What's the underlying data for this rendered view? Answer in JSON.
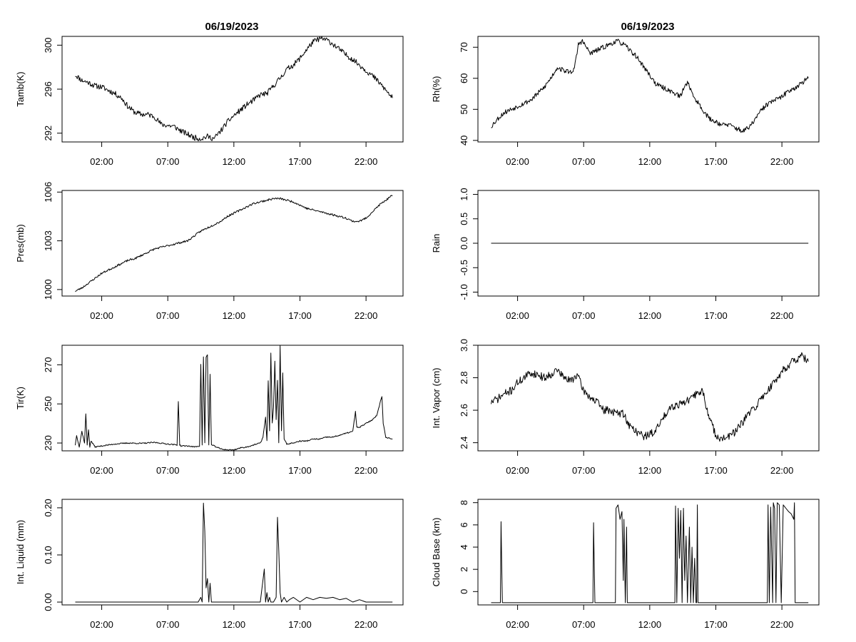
{
  "titles": {
    "left": "06/19/2023",
    "right": "06/19/2023"
  },
  "chart_data": [
    {
      "id": "tamb",
      "type": "line",
      "ylabel": "Tamb(K)",
      "ylim": [
        291.2,
        300.8
      ],
      "yticks": [
        292,
        296,
        300
      ],
      "ytick_labels": [
        "292",
        "296",
        "300"
      ],
      "xlim": [
        -1.0,
        24.8
      ],
      "xticks": [
        2,
        7,
        12,
        17,
        22
      ],
      "xtick_labels": [
        "02:00",
        "07:00",
        "12:00",
        "17:00",
        "22:00"
      ],
      "x": [
        0,
        0.5,
        1,
        1.5,
        2,
        2.5,
        3,
        3.5,
        4,
        4.5,
        5,
        5.5,
        6,
        6.5,
        7,
        7.5,
        8,
        8.5,
        9,
        9.5,
        10,
        10.5,
        11,
        11.5,
        12,
        12.5,
        13,
        13.5,
        14,
        14.5,
        15,
        15.5,
        16,
        16.5,
        17,
        17.5,
        18,
        18.5,
        19,
        19.5,
        20,
        20.5,
        21,
        21.5,
        22,
        22.5,
        23,
        23.5,
        24
      ],
      "values": [
        297.3,
        296.8,
        296.6,
        296.3,
        296.2,
        295.9,
        295.6,
        295.2,
        294.4,
        293.9,
        293.7,
        293.7,
        293.5,
        292.8,
        292.7,
        292.6,
        292.2,
        291.9,
        291.6,
        291.5,
        291.7,
        291.5,
        292.2,
        293.0,
        293.6,
        294.1,
        294.6,
        295.0,
        295.5,
        295.6,
        296.3,
        297.0,
        297.8,
        298.2,
        298.8,
        299.6,
        300.3,
        300.6,
        300.5,
        300.1,
        299.6,
        299.1,
        298.7,
        298.2,
        297.7,
        297.2,
        296.6,
        295.9,
        295.2
      ],
      "noise": 0.25,
      "seed": 11
    },
    {
      "id": "pres",
      "type": "line",
      "ylabel": "Pres(mb)",
      "ylim": [
        999.6,
        1006.1
      ],
      "yticks": [
        1000,
        1003,
        1006
      ],
      "ytick_labels": [
        "1000",
        "1003",
        "1006"
      ],
      "xlim": [
        -1.0,
        24.8
      ],
      "xticks": [
        2,
        7,
        12,
        17,
        22
      ],
      "xtick_labels": [
        "02:00",
        "07:00",
        "12:00",
        "17:00",
        "22:00"
      ],
      "x": [
        0,
        0.5,
        1,
        1.5,
        2,
        2.5,
        3,
        3.5,
        4,
        4.5,
        5,
        5.5,
        6,
        6.5,
        7,
        7.5,
        8,
        8.5,
        9,
        9.5,
        10,
        10.5,
        11,
        11.5,
        12,
        12.5,
        13,
        13.5,
        14,
        14.5,
        15,
        15.5,
        16,
        16.5,
        17,
        17.5,
        18,
        18.5,
        19,
        19.5,
        20,
        20.5,
        21,
        21.5,
        22,
        22.5,
        23,
        23.5,
        24
      ],
      "values": [
        999.9,
        1000.1,
        1000.4,
        1000.7,
        1001.0,
        1001.2,
        1001.4,
        1001.6,
        1001.8,
        1001.9,
        1002.1,
        1002.3,
        1002.5,
        1002.6,
        1002.7,
        1002.8,
        1002.9,
        1003.0,
        1003.3,
        1003.6,
        1003.8,
        1004.0,
        1004.2,
        1004.5,
        1004.7,
        1004.9,
        1005.1,
        1005.3,
        1005.4,
        1005.5,
        1005.6,
        1005.6,
        1005.5,
        1005.4,
        1005.2,
        1005.0,
        1004.9,
        1004.8,
        1004.7,
        1004.6,
        1004.5,
        1004.4,
        1004.2,
        1004.2,
        1004.4,
        1004.8,
        1005.2,
        1005.5,
        1005.8
      ],
      "noise": 0.06,
      "seed": 23
    },
    {
      "id": "tir",
      "type": "line",
      "ylabel": "Tir(K)",
      "ylim": [
        226.0,
        280.0
      ],
      "yticks": [
        230,
        250,
        270
      ],
      "ytick_labels": [
        "230",
        "250",
        "270"
      ],
      "xlim": [
        -1.0,
        24.8
      ],
      "xticks": [
        2,
        7,
        12,
        17,
        22
      ],
      "xtick_labels": [
        "02:00",
        "07:00",
        "12:00",
        "17:00",
        "22:00"
      ],
      "x": [
        0,
        0.1,
        0.3,
        0.5,
        0.7,
        0.8,
        0.9,
        1.0,
        1.1,
        1.2,
        1.5,
        2,
        3,
        4,
        5,
        6,
        7,
        7.7,
        7.8,
        7.9,
        8.0,
        8.5,
        9,
        9.4,
        9.5,
        9.6,
        9.7,
        9.8,
        9.9,
        10.0,
        10.1,
        10.2,
        10.3,
        10.5,
        11,
        11.5,
        12,
        12.5,
        13,
        13.5,
        14,
        14.2,
        14.4,
        14.5,
        14.6,
        14.7,
        14.8,
        14.9,
        15.0,
        15.1,
        15.2,
        15.3,
        15.4,
        15.5,
        15.6,
        15.7,
        15.8,
        16,
        16.5,
        17,
        17.5,
        18,
        18.5,
        19,
        19.5,
        20,
        20.5,
        21,
        21.2,
        21.3,
        21.5,
        22,
        22.5,
        22.8,
        23,
        23.2,
        23.3,
        23.5,
        24
      ],
      "values": [
        229,
        234,
        228,
        236,
        230,
        245,
        229,
        237,
        228,
        231,
        228,
        228.5,
        229.5,
        230,
        229.8,
        230.3,
        229.5,
        229,
        251,
        229,
        228.5,
        228.5,
        228,
        228.5,
        270,
        229,
        274,
        230,
        274,
        275,
        229,
        265,
        229,
        228.5,
        227,
        226.5,
        226.5,
        227.5,
        228,
        229,
        230,
        233,
        243,
        231,
        262,
        236,
        276,
        240,
        248,
        272,
        242,
        262,
        230,
        280,
        236,
        266,
        232,
        229.5,
        230,
        231,
        231,
        232,
        232,
        233,
        233,
        234,
        235,
        236,
        246,
        238,
        238,
        240,
        242,
        244,
        249,
        254,
        240,
        233,
        232
      ],
      "noise": 0.3,
      "seed": 37
    },
    {
      "id": "liq",
      "type": "line",
      "ylabel": "Int. Liquid (mm)",
      "ylim": [
        -0.006,
        0.218
      ],
      "yticks": [
        0.0,
        0.1,
        0.2
      ],
      "ytick_labels": [
        "0.00",
        "0.10",
        "0.20"
      ],
      "xlim": [
        -1.0,
        24.8
      ],
      "xticks": [
        2,
        7,
        12,
        17,
        22
      ],
      "xtick_labels": [
        "02:00",
        "07:00",
        "12:00",
        "17:00",
        "22:00"
      ],
      "x": [
        0,
        9.3,
        9.5,
        9.6,
        9.7,
        9.8,
        9.9,
        10.0,
        10.1,
        10.2,
        10.3,
        10.5,
        14.0,
        14.3,
        14.4,
        14.5,
        14.6,
        14.7,
        14.8,
        15.0,
        15.2,
        15.3,
        15.4,
        15.5,
        15.6,
        15.8,
        16.0,
        16.2,
        16.5,
        17.0,
        17.5,
        18.0,
        18.5,
        19.0,
        19.5,
        20.0,
        20.5,
        21.0,
        21.5,
        22.0,
        23.0,
        24.0
      ],
      "values": [
        0,
        0,
        0.01,
        0,
        0.21,
        0.15,
        0.03,
        0.05,
        0,
        0.04,
        0,
        0,
        0,
        0.07,
        0,
        0.02,
        0,
        0.01,
        0,
        0,
        0.01,
        0.18,
        0.11,
        0.02,
        0,
        0.01,
        0,
        0.005,
        0.01,
        0,
        0.01,
        0.005,
        0.01,
        0.008,
        0.01,
        0.005,
        0.008,
        0,
        0.005,
        0,
        0,
        0
      ],
      "noise": 0,
      "seed": 1
    },
    {
      "id": "rh",
      "type": "line",
      "ylabel": "Rh(%)",
      "ylim": [
        39.5,
        73.5
      ],
      "yticks": [
        40,
        50,
        60,
        70
      ],
      "ytick_labels": [
        "40",
        "50",
        "60",
        "70"
      ],
      "xlim": [
        -1.0,
        24.8
      ],
      "xticks": [
        2,
        7,
        12,
        17,
        22
      ],
      "xtick_labels": [
        "02:00",
        "07:00",
        "12:00",
        "17:00",
        "22:00"
      ],
      "x": [
        0,
        0.5,
        1,
        1.5,
        2,
        2.5,
        3,
        3.5,
        4,
        4.5,
        5,
        5.5,
        6,
        6.3,
        6.6,
        6.9,
        7.2,
        7.5,
        8,
        8.5,
        9,
        9.5,
        10,
        10.5,
        11,
        11.5,
        12,
        12.5,
        13,
        13.5,
        14,
        14.3,
        14.6,
        14.9,
        15.2,
        15.5,
        16,
        16.5,
        17,
        17.5,
        18,
        18.5,
        19,
        19.5,
        20,
        20.5,
        21,
        21.5,
        22,
        22.5,
        23,
        23.5,
        24
      ],
      "values": [
        44.5,
        47,
        49,
        50,
        51,
        52,
        53,
        55,
        57,
        60,
        63.5,
        62.5,
        62,
        63,
        71,
        72,
        70,
        68,
        69,
        70,
        71,
        72,
        71,
        69,
        67,
        64,
        61,
        58,
        57,
        56,
        55,
        54,
        57,
        59,
        55,
        53,
        50,
        47,
        46,
        45,
        45,
        44,
        43,
        44,
        47,
        50,
        52,
        53,
        54,
        56,
        57,
        58.5,
        60
      ],
      "noise": 0.8,
      "seed": 53
    },
    {
      "id": "rain",
      "type": "line",
      "ylabel": "Rain",
      "ylim": [
        -1.08,
        1.08
      ],
      "yticks": [
        -1.0,
        -0.5,
        0.0,
        0.5,
        1.0
      ],
      "ytick_labels": [
        "-1.0",
        "-0.5",
        "0.0",
        "0.5",
        "1.0"
      ],
      "xlim": [
        -1.0,
        24.8
      ],
      "xticks": [
        2,
        7,
        12,
        17,
        22
      ],
      "xtick_labels": [
        "02:00",
        "07:00",
        "12:00",
        "17:00",
        "22:00"
      ],
      "x": [
        0,
        24
      ],
      "values": [
        0.0,
        0.0
      ],
      "noise": 0,
      "seed": 1
    },
    {
      "id": "vapor",
      "type": "line",
      "ylabel": "Int. Vapor (cm)",
      "ylim": [
        2.35,
        3.0
      ],
      "yticks": [
        2.4,
        2.6,
        2.8,
        3.0
      ],
      "ytick_labels": [
        "2.4",
        "2.6",
        "2.8",
        "3.0"
      ],
      "xlim": [
        -1.0,
        24.8
      ],
      "xticks": [
        2,
        7,
        12,
        17,
        22
      ],
      "xtick_labels": [
        "02:00",
        "07:00",
        "12:00",
        "17:00",
        "22:00"
      ],
      "x": [
        0,
        0.5,
        1,
        1.5,
        2,
        2.5,
        3,
        3.5,
        4,
        4.5,
        5,
        5.5,
        6,
        6.5,
        7,
        7.5,
        8,
        8.5,
        9,
        9.5,
        10,
        10.5,
        11,
        11.5,
        12,
        12.5,
        13,
        13.5,
        14,
        14.5,
        15,
        15.5,
        16,
        16.5,
        17,
        17.5,
        18,
        18.5,
        19,
        19.5,
        20,
        20.5,
        21,
        21.5,
        22,
        22.5,
        23,
        23.5,
        24
      ],
      "values": [
        2.65,
        2.67,
        2.7,
        2.72,
        2.77,
        2.8,
        2.83,
        2.82,
        2.8,
        2.82,
        2.85,
        2.8,
        2.78,
        2.82,
        2.72,
        2.68,
        2.65,
        2.6,
        2.6,
        2.58,
        2.58,
        2.5,
        2.47,
        2.44,
        2.45,
        2.48,
        2.55,
        2.62,
        2.63,
        2.65,
        2.66,
        2.7,
        2.72,
        2.55,
        2.45,
        2.42,
        2.44,
        2.47,
        2.52,
        2.58,
        2.62,
        2.68,
        2.73,
        2.78,
        2.84,
        2.88,
        2.91,
        2.93,
        2.9
      ],
      "noise": 0.025,
      "seed": 71
    },
    {
      "id": "cbase",
      "type": "line",
      "ylabel": "Cloud Base (km)",
      "ylim": [
        -1.2,
        8.3
      ],
      "yticks": [
        0,
        2,
        4,
        6,
        8
      ],
      "ytick_labels": [
        "0",
        "2",
        "4",
        "6",
        "8"
      ],
      "xlim": [
        -1.0,
        24.8
      ],
      "xticks": [
        2,
        7,
        12,
        17,
        22
      ],
      "xtick_labels": [
        "02:00",
        "07:00",
        "12:00",
        "17:00",
        "22:00"
      ],
      "x": [
        0,
        0.7,
        0.75,
        0.8,
        0.85,
        7.7,
        7.75,
        7.8,
        7.85,
        9.4,
        9.45,
        9.6,
        9.75,
        9.9,
        10.0,
        10.05,
        10.15,
        10.25,
        10.3,
        13.9,
        13.95,
        14.05,
        14.15,
        14.25,
        14.35,
        14.45,
        14.55,
        14.65,
        14.75,
        14.85,
        15.0,
        15.1,
        15.2,
        15.3,
        15.4,
        15.5,
        15.55,
        15.6,
        15.65,
        15.7,
        20.9,
        20.95,
        21.05,
        21.15,
        21.3,
        21.35,
        21.45,
        21.55,
        21.65,
        21.8,
        21.95,
        22.1,
        22.3,
        22.5,
        22.7,
        22.9,
        22.95,
        23.0,
        23.05,
        24.0
      ],
      "values": [
        -1,
        -1,
        6.3,
        2.5,
        -1,
        -1,
        6.2,
        2.5,
        -1,
        -1,
        7.5,
        7.8,
        6.5,
        7.2,
        1,
        6.5,
        -1,
        5.8,
        -1,
        -1,
        7.7,
        -1,
        7.5,
        3,
        7.3,
        -1,
        7.5,
        1,
        5,
        -1,
        5.8,
        -1,
        4,
        -1,
        3,
        -1,
        -1,
        7.8,
        -1,
        -1,
        -1,
        7.8,
        -1,
        7.6,
        -1,
        8,
        7.5,
        -1,
        8,
        7.8,
        -1,
        7.8,
        7.5,
        7.2,
        7,
        6.5,
        8,
        -1,
        -1,
        -1
      ],
      "noise": 0,
      "seed": 1
    }
  ]
}
